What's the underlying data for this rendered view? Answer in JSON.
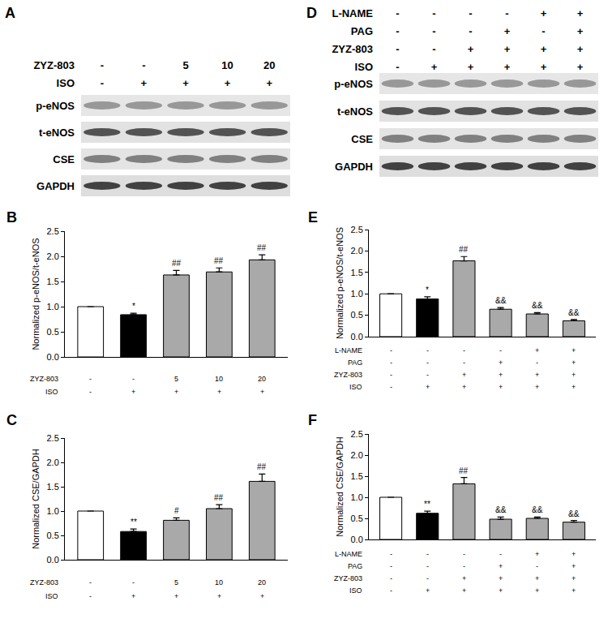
{
  "blots": [
    {
      "panel": "A",
      "conditions": [
        {
          "label": "ZYZ-803",
          "values": [
            "-",
            "-",
            "5",
            "10",
            "20"
          ]
        },
        {
          "label": "ISO",
          "values": [
            "-",
            "+",
            "+",
            "+",
            "+"
          ]
        }
      ],
      "rows": [
        "p-eNOS",
        "t-eNOS",
        "CSE",
        "GAPDH"
      ]
    },
    {
      "panel": "D",
      "conditions": [
        {
          "label": "L-NAME",
          "values": [
            "-",
            "-",
            "-",
            "-",
            "+",
            "+"
          ]
        },
        {
          "label": "PAG",
          "values": [
            "-",
            "-",
            "-",
            "+",
            "-",
            "+"
          ]
        },
        {
          "label": "ZYZ-803",
          "values": [
            "-",
            "-",
            "+",
            "+",
            "+",
            "+"
          ]
        },
        {
          "label": "ISO",
          "values": [
            "-",
            "+",
            "+",
            "+",
            "+",
            "+"
          ]
        }
      ],
      "rows": [
        "p-eNOS",
        "t-eNOS",
        "CSE",
        "GAPDH"
      ]
    }
  ],
  "chart_data": [
    {
      "type": "bar",
      "panel": "B",
      "ylabel": "Normalized p-eNOS/t-eNOS",
      "categories": [
        null,
        null,
        null,
        null,
        null
      ],
      "values": [
        1.0,
        0.84,
        1.63,
        1.69,
        1.93
      ],
      "errors": [
        0,
        0.03,
        0.09,
        0.08,
        0.1
      ],
      "colors": [
        "#ffffff",
        "#000000",
        "#a9a9a9",
        "#a9a9a9",
        "#a9a9a9"
      ],
      "significance": [
        null,
        "*",
        "##",
        "##",
        "##"
      ],
      "treatments": [
        {
          "label": "ZYZ-803",
          "values": [
            "-",
            "-",
            "5",
            "10",
            "20"
          ]
        },
        {
          "label": "ISO",
          "values": [
            "-",
            "+",
            "+",
            "+",
            "+"
          ]
        }
      ],
      "ylim": [
        0,
        2.5
      ],
      "yticks": [
        {
          "value": 0,
          "label": "0.0"
        },
        0.5,
        {
          "value": 1,
          "label": "1.0"
        },
        1.5,
        {
          "value": 2,
          "label": "2.0"
        },
        2.5
      ],
      "tick_labels": "y"
    },
    {
      "type": "bar",
      "panel": "C",
      "ylabel": "Normalized CSE/GAPDH",
      "categories": [
        null,
        null,
        null,
        null,
        null
      ],
      "values": [
        1.0,
        0.58,
        0.81,
        1.05,
        1.61
      ],
      "errors": [
        0,
        0.05,
        0.05,
        0.08,
        0.15
      ],
      "colors": [
        "#ffffff",
        "#000000",
        "#a9a9a9",
        "#a9a9a9",
        "#a9a9a9"
      ],
      "significance": [
        null,
        "**",
        "#",
        "##",
        "##"
      ],
      "treatments": [
        {
          "label": "ZYZ-803",
          "values": [
            "-",
            "-",
            "5",
            "10",
            "20"
          ]
        },
        {
          "label": "ISO",
          "values": [
            "-",
            "+",
            "+",
            "+",
            "+"
          ]
        }
      ],
      "ylim": [
        0,
        2.5
      ],
      "yticks": [
        {
          "value": 0,
          "label": "0.0"
        },
        0.5,
        {
          "value": 1,
          "label": "1.0"
        },
        1.5,
        {
          "value": 2,
          "label": "2.0"
        },
        2.5
      ],
      "tick_labels": "y"
    },
    {
      "type": "bar",
      "panel": "E",
      "ylabel": "Normalized p-eNOS/t-eNOS",
      "categories": [
        null,
        null,
        null,
        null,
        null,
        null
      ],
      "values": [
        1.0,
        0.88,
        1.77,
        0.64,
        0.53,
        0.37
      ],
      "errors": [
        0,
        0.05,
        0.1,
        0.04,
        0.03,
        0.03
      ],
      "colors": [
        "#ffffff",
        "#000000",
        "#a9a9a9",
        "#a9a9a9",
        "#a9a9a9",
        "#a9a9a9"
      ],
      "significance": [
        null,
        "*",
        "##",
        "&&",
        "&&",
        "&&"
      ],
      "treatments": [
        {
          "label": "L-NAME",
          "values": [
            "-",
            "-",
            "-",
            "-",
            "+",
            "+"
          ]
        },
        {
          "label": "PAG",
          "values": [
            "-",
            "-",
            "-",
            "+",
            "-",
            "+"
          ]
        },
        {
          "label": "ZYZ-803",
          "values": [
            "-",
            "-",
            "+",
            "+",
            "+",
            "+"
          ]
        },
        {
          "label": "ISO",
          "values": [
            "-",
            "+",
            "+",
            "+",
            "+",
            "+"
          ]
        }
      ],
      "ylim": [
        0,
        2.5
      ],
      "yticks": [
        {
          "value": 0,
          "label": "0.0"
        },
        0.5,
        {
          "value": 1,
          "label": "1.0"
        },
        1.5,
        {
          "value": 2,
          "label": "2.0"
        },
        2.5
      ],
      "tick_labels": "y"
    },
    {
      "type": "bar",
      "panel": "F",
      "ylabel": "Normalized CSE/GAPDH",
      "categories": [
        null,
        null,
        null,
        null,
        null,
        null
      ],
      "values": [
        1.0,
        0.62,
        1.32,
        0.48,
        0.5,
        0.41
      ],
      "errors": [
        0,
        0.05,
        0.15,
        0.05,
        0.03,
        0.04
      ],
      "colors": [
        "#ffffff",
        "#000000",
        "#a9a9a9",
        "#a9a9a9",
        "#a9a9a9",
        "#a9a9a9"
      ],
      "significance": [
        null,
        "**",
        "##",
        "&&",
        "&&",
        "&&"
      ],
      "treatments": [
        {
          "label": "L-NAME",
          "values": [
            "-",
            "-",
            "-",
            "-",
            "+",
            "+"
          ]
        },
        {
          "label": "PAG",
          "values": [
            "-",
            "-",
            "-",
            "+",
            "-",
            "+"
          ]
        },
        {
          "label": "ZYZ-803",
          "values": [
            "-",
            "-",
            "+",
            "+",
            "+",
            "+"
          ]
        },
        {
          "label": "ISO",
          "values": [
            "-",
            "+",
            "+",
            "+",
            "+",
            "+"
          ]
        }
      ],
      "ylim": [
        0,
        2.5
      ],
      "yticks": [
        {
          "value": 0,
          "label": "0.0"
        },
        0.5,
        {
          "value": 1,
          "label": "1.0"
        },
        1.5,
        {
          "value": 2,
          "label": "2.0"
        },
        2.5
      ],
      "tick_labels": "y"
    }
  ]
}
